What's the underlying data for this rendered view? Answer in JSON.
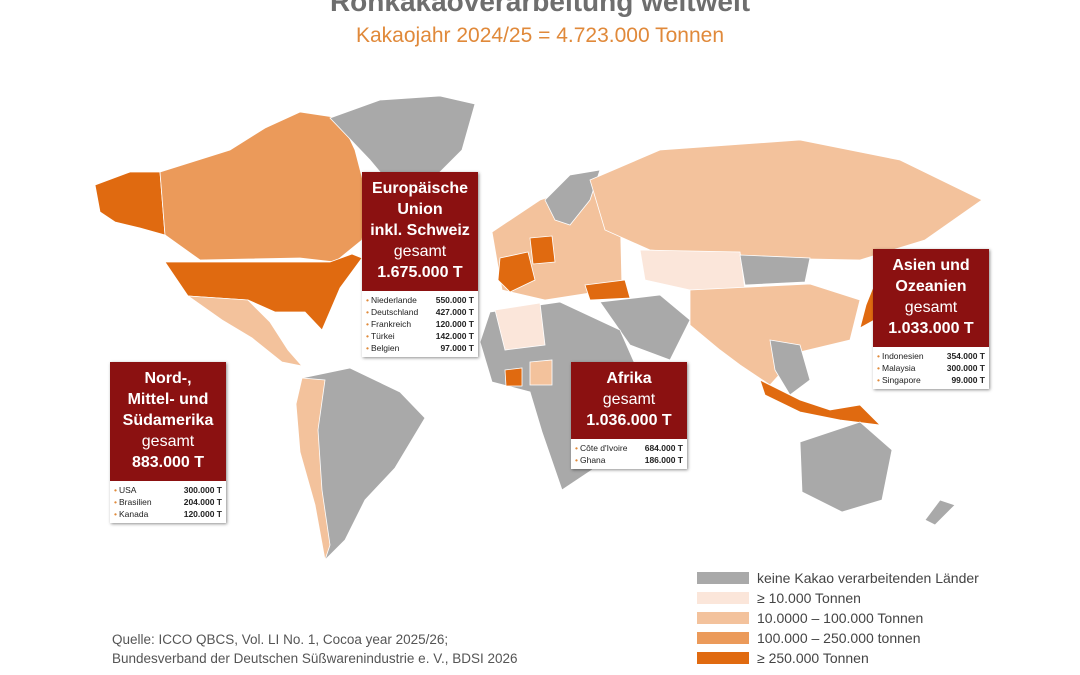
{
  "header": {
    "title": "Rohkakaoverarbeitung weltweit",
    "subtitle": "Kakaojahr 2024/25 = 4.723.000 Tonnen"
  },
  "regions": [
    {
      "title_lines": [
        "Europäische",
        "Union",
        "inkl. Schweiz"
      ],
      "label": "gesamt",
      "total": "1.675.000 T",
      "countries": [
        [
          "Niederlande",
          "550.000 T"
        ],
        [
          "Deutschland",
          "427.000 T"
        ],
        [
          "Frankreich",
          "120.000 T"
        ],
        [
          "Türkei",
          "142.000 T"
        ],
        [
          "Belgien",
          "97.000 T"
        ]
      ]
    },
    {
      "title_lines": [
        "Asien und",
        "Ozeanien"
      ],
      "label": "gesamt",
      "total": "1.033.000 T",
      "countries": [
        [
          "Indonesien",
          "354.000 T"
        ],
        [
          "Malaysia",
          "300.000 T"
        ],
        [
          "Singapore",
          "99.000 T"
        ]
      ]
    },
    {
      "title_lines": [
        "Afrika"
      ],
      "label": "gesamt",
      "total": "1.036.000 T",
      "countries": [
        [
          "Côte d'Ivoire",
          "684.000 T"
        ],
        [
          "Ghana",
          "186.000 T"
        ]
      ]
    },
    {
      "title_lines": [
        "Nord-,",
        "Mittel- und",
        "Südamerika"
      ],
      "label": "gesamt",
      "total": "883.000 T",
      "countries": [
        [
          "USA",
          "300.000 T"
        ],
        [
          "Brasilien",
          "204.000 T"
        ],
        [
          "Kanada",
          "120.000 T"
        ]
      ]
    }
  ],
  "legend": [
    {
      "label": "keine Kakao verarbeitenden Länder",
      "color": "#a9a9a9"
    },
    {
      "label": "≥ 10.000 Tonnen",
      "color": "#fbe6da"
    },
    {
      "label": "10.0000 – 100.000 Tonnen",
      "color": "#f3c29c"
    },
    {
      "label": "100.000 – 250.000 tonnen",
      "color": "#eb9a5a"
    },
    {
      "label": "≥ 250.000 Tonnen",
      "color": "#e06a10"
    }
  ],
  "source": [
    "Quelle: ICCO QBCS, Vol. LI No. 1, Cocoa year 2025/26;",
    "Bundesverband der Deutschen Süßwarenindustrie e. V., BDSI 2026"
  ]
}
